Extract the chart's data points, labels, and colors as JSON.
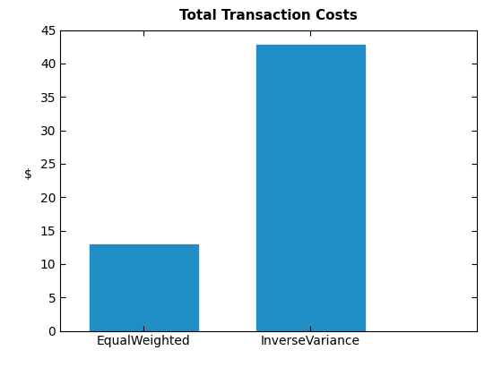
{
  "categories": [
    "EqualWeighted",
    "InverseVariance"
  ],
  "values": [
    13.0,
    42.8
  ],
  "bar_color": "#1f8ec6",
  "title": "Total Transaction Costs",
  "ylabel": "$",
  "ylim": [
    0,
    45
  ],
  "yticks": [
    0,
    5,
    10,
    15,
    20,
    25,
    30,
    35,
    40,
    45
  ],
  "title_fontsize": 11,
  "label_fontsize": 10,
  "tick_fontsize": 10,
  "bar_width": 0.65,
  "figsize": [
    5.6,
    4.2
  ],
  "dpi": 100
}
